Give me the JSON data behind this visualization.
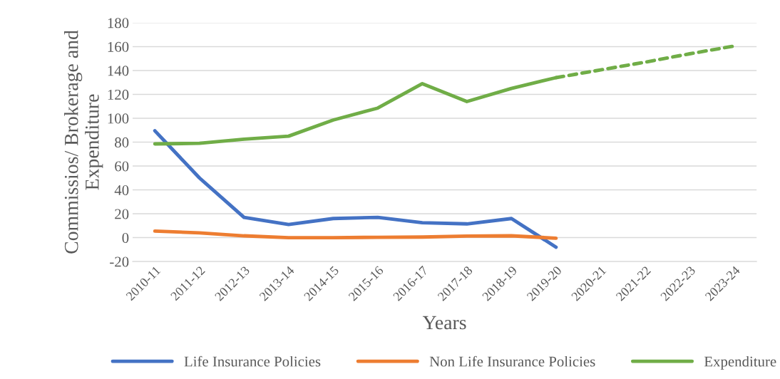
{
  "chart_data": {
    "type": "line",
    "xlabel": "Years",
    "ylabel": "Commissios/ Brokerage and Expenditure",
    "categories": [
      "2010-11",
      "2011-12",
      "2012-13",
      "2013-14",
      "2014-15",
      "2015-16",
      "2016-17",
      "2017-18",
      "2018-19",
      "2019-20",
      "2020-21",
      "2021-22",
      "2022-23",
      "2023-24"
    ],
    "series": [
      {
        "name": "Life Insurance Policies",
        "color": "#4472c4",
        "values": [
          89.5,
          50,
          17,
          11,
          16,
          17,
          12.5,
          11.5,
          16,
          -8,
          null,
          null,
          null,
          null
        ]
      },
      {
        "name": "Non Life Insurance Policies",
        "color": "#ed7d31",
        "values": [
          5.5,
          4,
          1.5,
          0,
          0,
          0.3,
          0.5,
          1.3,
          1.5,
          -0.5,
          null,
          null,
          null,
          null
        ]
      },
      {
        "name": "Expenditure",
        "color": "#70ad47",
        "values": [
          78.5,
          79,
          82.5,
          85,
          98.5,
          108.5,
          129,
          114,
          125,
          134,
          null,
          null,
          null,
          null
        ]
      },
      {
        "color": "#70ad47",
        "line_style": "dashed",
        "values": [
          null,
          null,
          null,
          null,
          null,
          null,
          null,
          null,
          null,
          134,
          140.5,
          147,
          154,
          160.5
        ]
      }
    ],
    "ylim": [
      -20,
      180
    ],
    "yticks": [
      -20,
      0,
      20,
      40,
      60,
      80,
      100,
      120,
      140,
      160,
      180
    ],
    "grid": "y",
    "legend": "bottom",
    "marker": "none",
    "line_style": "solid"
  }
}
